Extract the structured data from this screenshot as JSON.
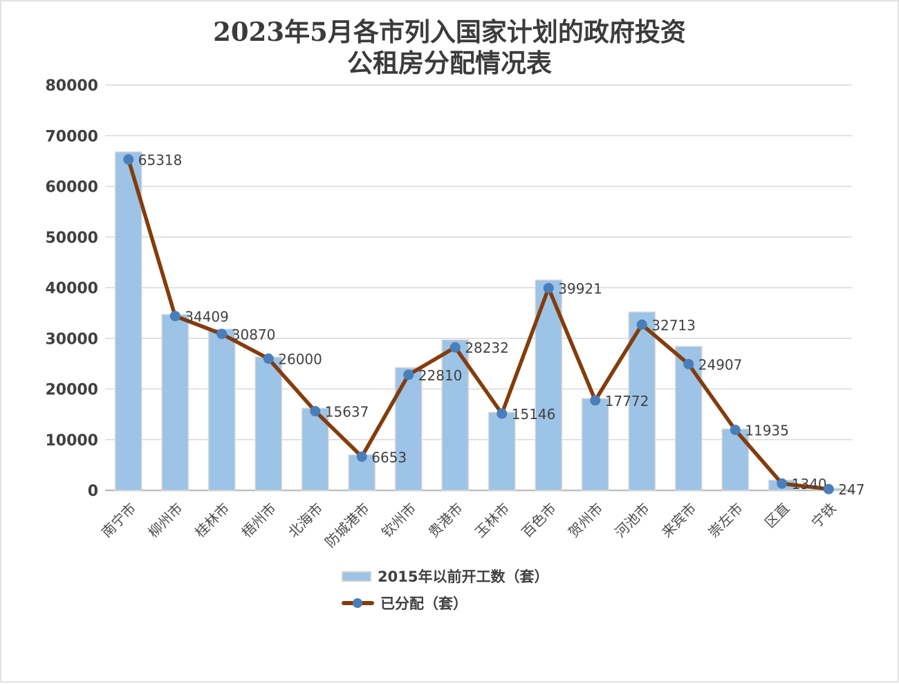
{
  "chart_data": {
    "type": "bar",
    "title": "2023年5月各市列入国家计划的政府投资公租房分配情况表",
    "title_lines": [
      "2023年5月各市列入国家计划的政府投资",
      "公租房分配情况表"
    ],
    "categories": [
      "南宁市",
      "柳州市",
      "桂林市",
      "梧州市",
      "北海市",
      "防城港市",
      "钦州市",
      "贵港市",
      "玉林市",
      "百色市",
      "贺州市",
      "河池市",
      "来宾市",
      "崇左市",
      "区直",
      "宁铁"
    ],
    "series": [
      {
        "name": "2015年以前开工数（套）",
        "kind": "bar",
        "color": "#9DC3E6",
        "border_color": "#D6D6D6",
        "values_estimated_from_pixels": true,
        "values": [
          66800,
          34700,
          31800,
          26300,
          16200,
          7000,
          24200,
          29700,
          15400,
          41500,
          18100,
          35200,
          28400,
          12100,
          2000,
          400
        ]
      },
      {
        "name": "已分配（套）",
        "kind": "line",
        "color": "#843C0C",
        "marker_color": "#4A7EBB",
        "data_labels_shown": true,
        "values": [
          65318,
          34409,
          30870,
          26000,
          15637,
          6653,
          22810,
          28232,
          15146,
          39921,
          17772,
          32713,
          24907,
          11935,
          1340,
          247
        ]
      }
    ],
    "ylim": [
      0,
      80000
    ],
    "y_step": 10000,
    "y_tick_labels": [
      "0",
      "10000",
      "20000",
      "30000",
      "40000",
      "50000",
      "60000",
      "70000",
      "80000"
    ],
    "grid": true,
    "grid_color": "#D9D9D9",
    "axis_line_color": "#BFBFBF",
    "text_color": "#404040",
    "legend_position": "bottom"
  },
  "legend": {
    "items": [
      "2015年以前开工数（套）",
      "已分配（套）"
    ]
  }
}
